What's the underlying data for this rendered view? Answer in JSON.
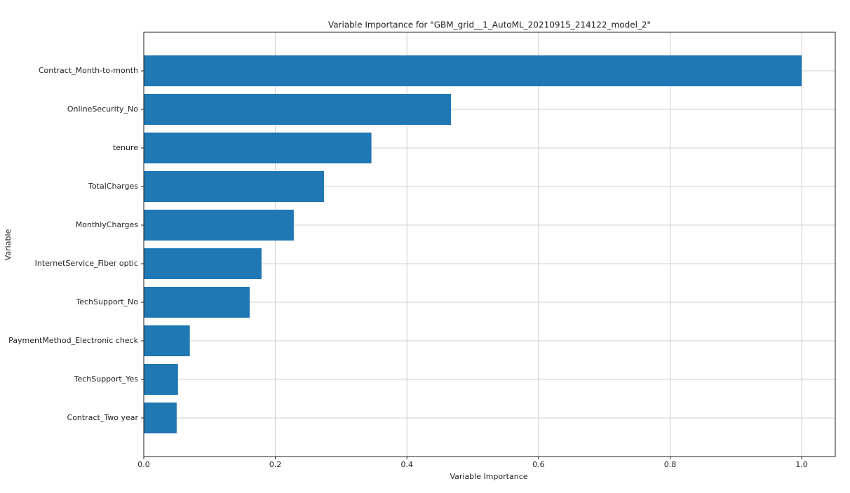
{
  "chart_data": {
    "type": "barh",
    "title": "Variable Importance for \"GBM_grid__1_AutoML_20210915_214122_model_2\"",
    "xlabel": "Variable Importance",
    "ylabel": "Variable",
    "categories": [
      "Contract_Month-to-month",
      "OnlineSecurity_No",
      "tenure",
      "TotalCharges",
      "MonthlyCharges",
      "InternetService_Fiber optic",
      "TechSupport_No",
      "PaymentMethod_Electronic check",
      "TechSupport_Yes",
      "Contract_Two year"
    ],
    "values": [
      1.0,
      0.467,
      0.346,
      0.274,
      0.228,
      0.179,
      0.161,
      0.07,
      0.052,
      0.05
    ],
    "color": "#1f77b4",
    "xlim": [
      0,
      1.051
    ],
    "xticks": [
      {
        "value": 0,
        "label": "0.0"
      },
      0.2,
      0.4,
      0.6,
      0.8,
      {
        "value": 1,
        "label": "1.0"
      }
    ],
    "grid": true
  }
}
